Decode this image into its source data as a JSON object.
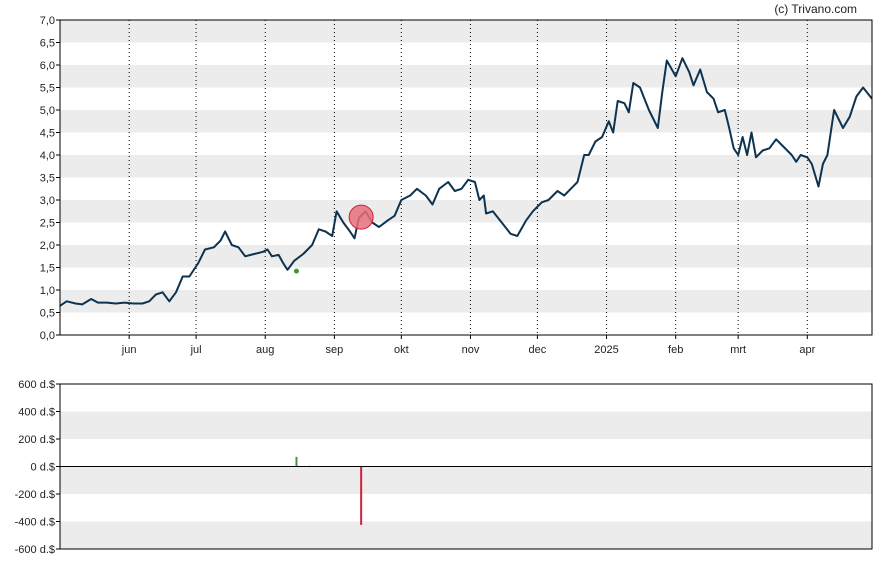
{
  "credit": "(c) Trivano.com",
  "colors": {
    "band": "#ececec",
    "line": "#0d3350",
    "buy": "#3a9a3a",
    "sell": "#d0213a",
    "marker_fill": "#e8707a",
    "axis": "#000000",
    "grid": "#000000"
  },
  "chart_data": [
    {
      "type": "line",
      "title": "",
      "xlabel": "",
      "ylabel": "",
      "x_range": [
        "2024-05-01",
        "2025-04-30"
      ],
      "ylim": [
        0,
        7
      ],
      "y_ticks": [
        "0,0",
        "0,5",
        "1,0",
        "1,5",
        "2,0",
        "2,5",
        "3,0",
        "3,5",
        "4,0",
        "4,5",
        "5,0",
        "5,5",
        "6,0",
        "6,5",
        "7,0"
      ],
      "x_ticks": [
        {
          "label": "jun",
          "date": "2024-06-01"
        },
        {
          "label": "jul",
          "date": "2024-07-01"
        },
        {
          "label": "aug",
          "date": "2024-08-01"
        },
        {
          "label": "sep",
          "date": "2024-09-01"
        },
        {
          "label": "okt",
          "date": "2024-10-01"
        },
        {
          "label": "nov",
          "date": "2024-11-01"
        },
        {
          "label": "dec",
          "date": "2024-12-01"
        },
        {
          "label": "2025",
          "date": "2025-01-01"
        },
        {
          "label": "feb",
          "date": "2025-02-01"
        },
        {
          "label": "mrt",
          "date": "2025-03-01"
        },
        {
          "label": "apr",
          "date": "2025-04-01"
        }
      ],
      "grid": "vertical dotted lines at month ticks, alternating horizontal bands",
      "series": [
        {
          "points": [
            [
              "2024-05-01",
              0.65
            ],
            [
              "2024-05-04",
              0.75
            ],
            [
              "2024-05-08",
              0.7
            ],
            [
              "2024-05-11",
              0.68
            ],
            [
              "2024-05-15",
              0.8
            ],
            [
              "2024-05-18",
              0.72
            ],
            [
              "2024-05-22",
              0.72
            ],
            [
              "2024-05-26",
              0.7
            ],
            [
              "2024-05-30",
              0.72
            ],
            [
              "2024-06-03",
              0.7
            ],
            [
              "2024-06-07",
              0.7
            ],
            [
              "2024-06-10",
              0.75
            ],
            [
              "2024-06-13",
              0.9
            ],
            [
              "2024-06-16",
              0.95
            ],
            [
              "2024-06-19",
              0.75
            ],
            [
              "2024-06-22",
              0.95
            ],
            [
              "2024-06-25",
              1.3
            ],
            [
              "2024-06-28",
              1.3
            ],
            [
              "2024-07-02",
              1.6
            ],
            [
              "2024-07-05",
              1.9
            ],
            [
              "2024-07-09",
              1.95
            ],
            [
              "2024-07-12",
              2.1
            ],
            [
              "2024-07-14",
              2.3
            ],
            [
              "2024-07-17",
              2.0
            ],
            [
              "2024-07-20",
              1.95
            ],
            [
              "2024-07-23",
              1.75
            ],
            [
              "2024-07-27",
              1.8
            ],
            [
              "2024-07-31",
              1.85
            ],
            [
              "2024-08-02",
              1.9
            ],
            [
              "2024-08-04",
              1.75
            ],
            [
              "2024-08-07",
              1.78
            ],
            [
              "2024-08-09",
              1.6
            ],
            [
              "2024-08-11",
              1.45
            ],
            [
              "2024-08-14",
              1.65
            ],
            [
              "2024-08-18",
              1.8
            ],
            [
              "2024-08-22",
              2.0
            ],
            [
              "2024-08-25",
              2.35
            ],
            [
              "2024-08-28",
              2.3
            ],
            [
              "2024-08-31",
              2.2
            ],
            [
              "2024-09-02",
              2.75
            ],
            [
              "2024-09-05",
              2.5
            ],
            [
              "2024-09-08",
              2.3
            ],
            [
              "2024-09-10",
              2.15
            ],
            [
              "2024-09-12",
              2.6
            ],
            [
              "2024-09-15",
              2.75
            ],
            [
              "2024-09-18",
              2.5
            ],
            [
              "2024-09-21",
              2.4
            ],
            [
              "2024-09-25",
              2.55
            ],
            [
              "2024-09-28",
              2.65
            ],
            [
              "2024-10-01",
              3.0
            ],
            [
              "2024-10-05",
              3.1
            ],
            [
              "2024-10-08",
              3.25
            ],
            [
              "2024-10-12",
              3.1
            ],
            [
              "2024-10-15",
              2.9
            ],
            [
              "2024-10-18",
              3.25
            ],
            [
              "2024-10-22",
              3.4
            ],
            [
              "2024-10-25",
              3.2
            ],
            [
              "2024-10-28",
              3.25
            ],
            [
              "2024-10-31",
              3.45
            ],
            [
              "2024-11-03",
              3.4
            ],
            [
              "2024-11-05",
              3.0
            ],
            [
              "2024-11-07",
              3.1
            ],
            [
              "2024-11-08",
              2.7
            ],
            [
              "2024-11-11",
              2.75
            ],
            [
              "2024-11-15",
              2.5
            ],
            [
              "2024-11-19",
              2.25
            ],
            [
              "2024-11-22",
              2.2
            ],
            [
              "2024-11-26",
              2.55
            ],
            [
              "2024-11-29",
              2.75
            ],
            [
              "2024-12-03",
              2.95
            ],
            [
              "2024-12-06",
              3.0
            ],
            [
              "2024-12-10",
              3.2
            ],
            [
              "2024-12-13",
              3.1
            ],
            [
              "2024-12-16",
              3.25
            ],
            [
              "2024-12-19",
              3.4
            ],
            [
              "2024-12-22",
              4.0
            ],
            [
              "2024-12-24",
              4.0
            ],
            [
              "2024-12-27",
              4.3
            ],
            [
              "2024-12-30",
              4.4
            ],
            [
              "2025-01-02",
              4.75
            ],
            [
              "2025-01-04",
              4.5
            ],
            [
              "2025-01-06",
              5.2
            ],
            [
              "2025-01-09",
              5.15
            ],
            [
              "2025-01-11",
              4.95
            ],
            [
              "2025-01-13",
              5.6
            ],
            [
              "2025-01-16",
              5.5
            ],
            [
              "2025-01-20",
              5.0
            ],
            [
              "2025-01-24",
              4.6
            ],
            [
              "2025-01-26",
              5.4
            ],
            [
              "2025-01-28",
              6.1
            ],
            [
              "2025-02-01",
              5.75
            ],
            [
              "2025-02-04",
              6.15
            ],
            [
              "2025-02-07",
              5.85
            ],
            [
              "2025-02-09",
              5.55
            ],
            [
              "2025-02-12",
              5.9
            ],
            [
              "2025-02-15",
              5.4
            ],
            [
              "2025-02-18",
              5.25
            ],
            [
              "2025-02-20",
              4.95
            ],
            [
              "2025-02-23",
              5.0
            ],
            [
              "2025-02-25",
              4.6
            ],
            [
              "2025-02-27",
              4.15
            ],
            [
              "2025-03-01",
              4.0
            ],
            [
              "2025-03-03",
              4.4
            ],
            [
              "2025-03-05",
              4.0
            ],
            [
              "2025-03-07",
              4.5
            ],
            [
              "2025-03-09",
              3.95
            ],
            [
              "2025-03-12",
              4.1
            ],
            [
              "2025-03-15",
              4.15
            ],
            [
              "2025-03-18",
              4.35
            ],
            [
              "2025-03-21",
              4.2
            ],
            [
              "2025-03-25",
              4.0
            ],
            [
              "2025-03-27",
              3.85
            ],
            [
              "2025-03-29",
              4.0
            ],
            [
              "2025-04-01",
              3.95
            ],
            [
              "2025-04-03",
              3.8
            ],
            [
              "2025-04-06",
              3.3
            ],
            [
              "2025-04-08",
              3.8
            ],
            [
              "2025-04-10",
              4.0
            ],
            [
              "2025-04-13",
              5.0
            ],
            [
              "2025-04-17",
              4.6
            ],
            [
              "2025-04-20",
              4.85
            ],
            [
              "2025-04-23",
              5.3
            ],
            [
              "2025-04-26",
              5.5
            ],
            [
              "2025-04-30",
              5.25
            ]
          ]
        }
      ],
      "markers": [
        {
          "kind": "sell",
          "date": "2024-09-13",
          "value": 2.62
        },
        {
          "kind": "buy",
          "date": "2024-08-15",
          "value": 1.42
        }
      ]
    },
    {
      "type": "bar",
      "title": "",
      "xlabel": "",
      "ylabel": "",
      "x_range": [
        "2024-05-01",
        "2025-04-30"
      ],
      "ylim": [
        -600,
        600
      ],
      "y_ticks": [
        {
          "label": "600 d.$",
          "value": 600
        },
        {
          "label": "400 d.$",
          "value": 400
        },
        {
          "label": "200 d.$",
          "value": 200
        },
        {
          "label": "0 d.$",
          "value": 0
        },
        {
          "label": "-200 d.$",
          "value": -200
        },
        {
          "label": "-400 d.$",
          "value": -400
        },
        {
          "label": "-600 d.$",
          "value": -600
        }
      ],
      "grid": "alternating horizontal bands, zero line",
      "bars": [
        {
          "date": "2024-08-15",
          "value": 70,
          "kind": "buy"
        },
        {
          "date": "2024-08-21",
          "value": 5,
          "kind": "buy"
        },
        {
          "date": "2024-09-13",
          "value": -425,
          "kind": "sell"
        }
      ]
    }
  ]
}
